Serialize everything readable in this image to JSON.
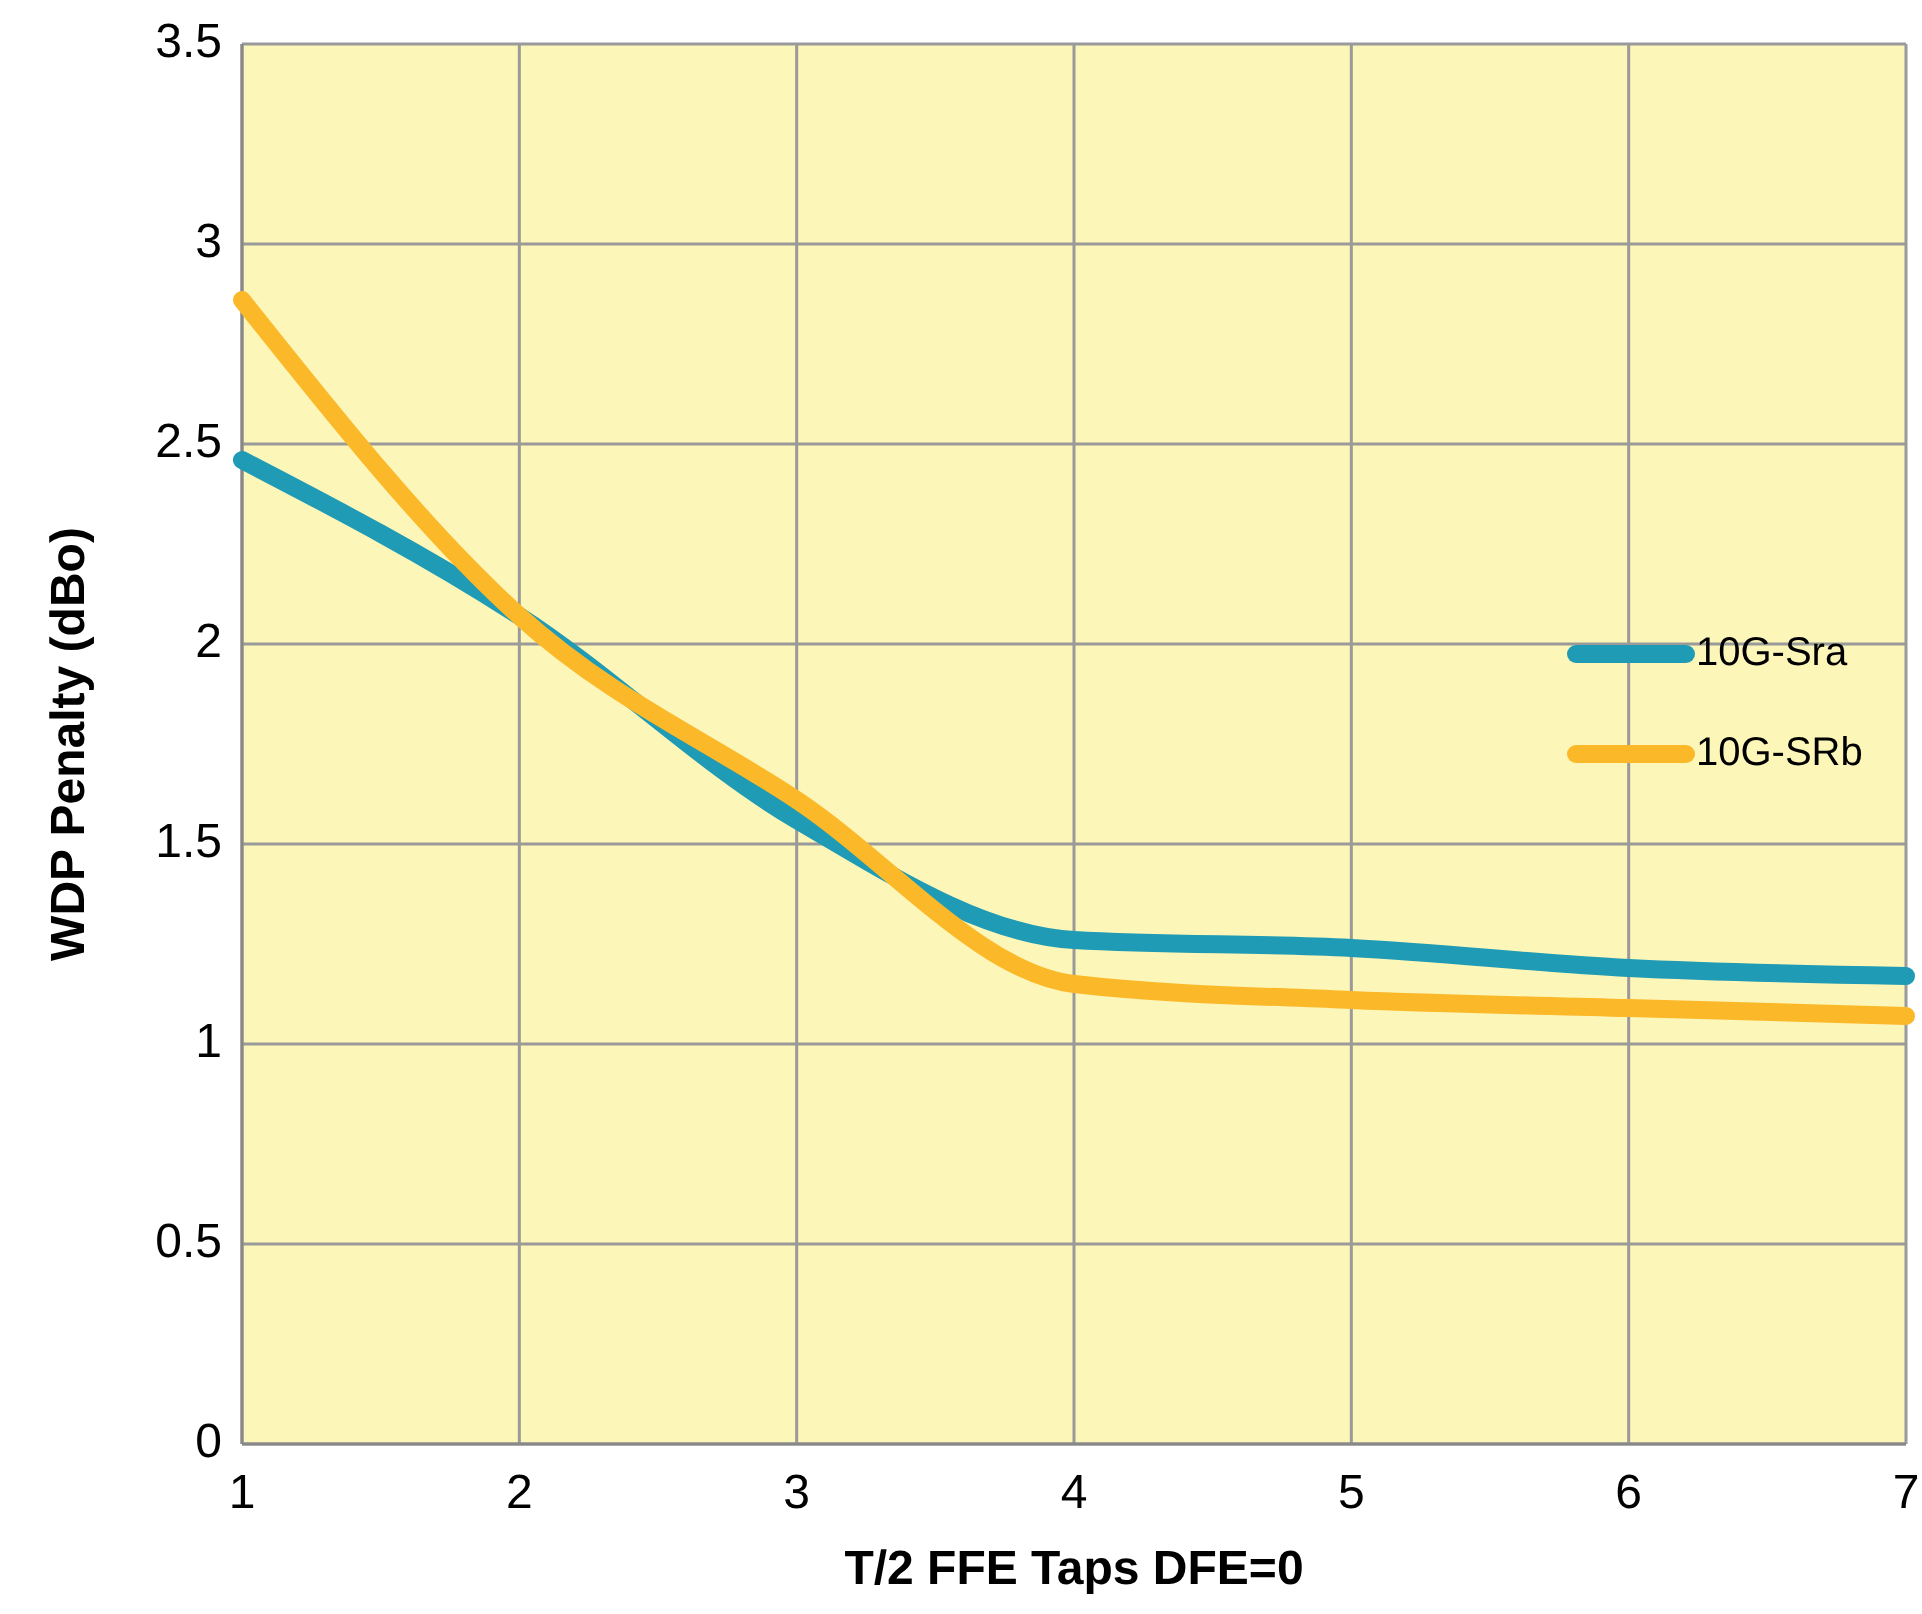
{
  "chart_data": {
    "type": "line",
    "xlabel": "T/2 FFE Taps DFE=0",
    "ylabel": "WDP Penalty (dBo)",
    "x": [
      1,
      2,
      3,
      4,
      5,
      6,
      7
    ],
    "series": [
      {
        "name": "10G-Sra",
        "color": "#1f9bb5",
        "values": [
          2.46,
          2.07,
          1.56,
          1.26,
          1.24,
          1.19,
          1.17
        ]
      },
      {
        "name": "10G-SRb",
        "color": "#fbb829",
        "values": [
          2.86,
          2.07,
          1.61,
          1.15,
          1.11,
          1.09,
          1.07
        ]
      }
    ],
    "xlim": [
      1,
      7
    ],
    "xticks": [
      1,
      2,
      3,
      4,
      5,
      6,
      7
    ],
    "ylim": [
      0,
      3.5
    ],
    "yticks": [
      0,
      0.5,
      1,
      1.5,
      2,
      2.5,
      3,
      3.5
    ],
    "grid": true,
    "legend": "right",
    "marker": "none",
    "line_style": "solid"
  }
}
